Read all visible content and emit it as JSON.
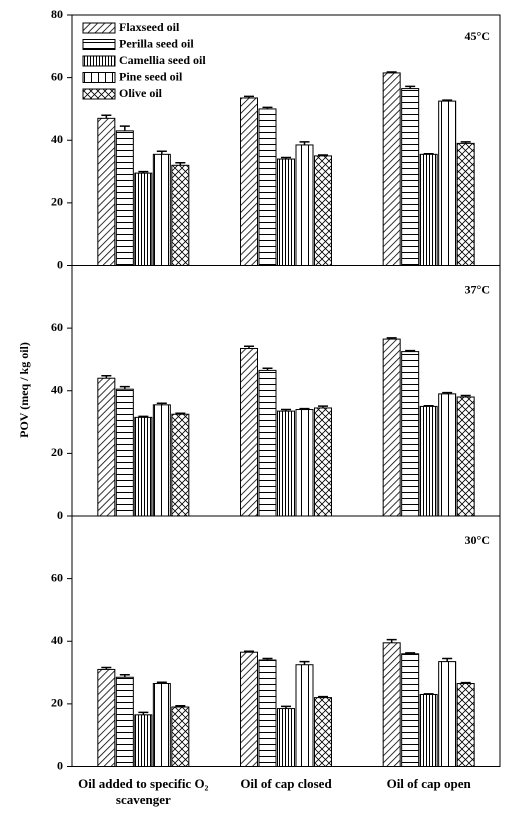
{
  "chart_data": {
    "type": "bar",
    "ylabel": "POV (meq / kg oil)",
    "categories": [
      "Oil  added to specific O₂ scavenger",
      "Oil of cap closed",
      "Oil of cap open"
    ],
    "series": [
      {
        "name": "Flaxseed oil",
        "pattern": "diagonal"
      },
      {
        "name": "Perilla seed oil",
        "pattern": "horizontal"
      },
      {
        "name": "Camellia seed oil",
        "pattern": "vertical-dense"
      },
      {
        "name": "Pine seed oil",
        "pattern": "vertical"
      },
      {
        "name": "Olive oil",
        "pattern": "cross"
      }
    ],
    "legend": "upper left",
    "panels": [
      {
        "label": "45°C",
        "ylim": [
          0,
          80
        ],
        "yticks": [
          0,
          20,
          40,
          60,
          80
        ],
        "values": [
          [
            47,
            53.5,
            61.5
          ],
          [
            43,
            50,
            56.5
          ],
          [
            29.5,
            34,
            35.5
          ],
          [
            35.5,
            38.5,
            52.5
          ],
          [
            32,
            35,
            39
          ]
        ],
        "errors": [
          [
            1,
            0.5,
            0.3
          ],
          [
            1.5,
            0.5,
            0.7
          ],
          [
            0.5,
            0.5,
            0.2
          ],
          [
            1,
            1,
            0.3
          ],
          [
            0.8,
            0.3,
            0.5
          ]
        ]
      },
      {
        "label": "37°C",
        "ylim": [
          0,
          80
        ],
        "yticks": [
          0,
          20,
          40,
          60
        ],
        "values": [
          [
            44,
            53.5,
            56.5
          ],
          [
            40.5,
            46.5,
            52.5
          ],
          [
            31.5,
            33.5,
            35
          ],
          [
            35.5,
            34,
            39
          ],
          [
            32.5,
            34.5,
            38
          ]
        ],
        "errors": [
          [
            0.8,
            0.7,
            0.4
          ],
          [
            0.8,
            0.7,
            0.3
          ],
          [
            0.3,
            0.5,
            0.2
          ],
          [
            0.5,
            0.3,
            0.4
          ],
          [
            0.3,
            0.6,
            0.5
          ]
        ]
      },
      {
        "label": "30°C",
        "ylim": [
          0,
          80
        ],
        "yticks": [
          0,
          20,
          40,
          60
        ],
        "values": [
          [
            31,
            36.5,
            39.5
          ],
          [
            28.5,
            34,
            36
          ],
          [
            16.5,
            18.5,
            23
          ],
          [
            26.5,
            32.5,
            33.5
          ],
          [
            19,
            22,
            26.5
          ]
        ],
        "errors": [
          [
            0.6,
            0.3,
            1
          ],
          [
            0.8,
            0.5,
            0.3
          ],
          [
            0.8,
            0.7,
            0.2
          ],
          [
            0.4,
            1,
            1
          ],
          [
            0.4,
            0.3,
            0.3
          ]
        ]
      }
    ]
  }
}
